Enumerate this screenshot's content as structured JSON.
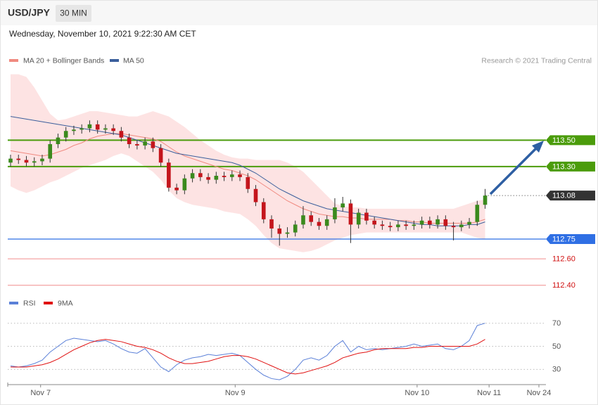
{
  "header": {
    "symbol": "USD/JPY",
    "interval": "30 MIN",
    "date": "Wednesday, November 10, 2021 9:22:30 AM CET"
  },
  "chart_data": [
    {
      "type": "candlestick",
      "source": "Research © 2021 Trading Central",
      "up_color": "#3b8a1d",
      "down_color": "#c4151c",
      "xlim": [
        0,
        66.8
      ],
      "xticks": [
        {
          "value": 3.8,
          "label": "Nov 7"
        },
        {
          "value": 28.4,
          "label": "Nov 9"
        },
        {
          "value": 51.4,
          "label": "Nov 10"
        },
        {
          "value": 60.5,
          "label": "Nov 11"
        },
        {
          "value": 66.8,
          "label": "Nov 24"
        }
      ],
      "ylim": [
        112.35,
        114.03
      ],
      "open": [
        113.33,
        113.36,
        113.35,
        113.33,
        113.34,
        113.36,
        113.47,
        113.52,
        113.57,
        113.58,
        113.59,
        113.62,
        113.58,
        113.59,
        113.57,
        113.52,
        113.47,
        113.46,
        113.49,
        113.44,
        113.33,
        113.14,
        113.12,
        113.21,
        113.25,
        113.22,
        113.2,
        113.23,
        113.22,
        113.24,
        113.22,
        113.13,
        113.03,
        112.9,
        112.83,
        112.79,
        112.8,
        112.86,
        112.93,
        112.88,
        112.85,
        112.9,
        112.99,
        113.02,
        112.86,
        112.95,
        112.89,
        112.86,
        112.85,
        112.84,
        112.86,
        112.85,
        112.86,
        112.89,
        112.86,
        112.9,
        112.85,
        112.84,
        112.86,
        112.88,
        113.01
      ],
      "high": [
        113.39,
        113.39,
        113.38,
        113.37,
        113.39,
        113.5,
        113.55,
        113.6,
        113.61,
        113.62,
        113.65,
        113.65,
        113.62,
        113.62,
        113.6,
        113.55,
        113.5,
        113.52,
        113.52,
        113.47,
        113.36,
        113.17,
        113.24,
        113.28,
        113.28,
        113.25,
        113.26,
        113.26,
        113.27,
        113.27,
        113.25,
        113.16,
        113.06,
        112.93,
        112.86,
        112.84,
        112.89,
        113.0,
        112.96,
        112.91,
        112.93,
        113.06,
        113.07,
        113.05,
        112.98,
        112.98,
        112.92,
        112.89,
        112.88,
        112.89,
        112.89,
        112.89,
        112.92,
        112.92,
        112.93,
        112.93,
        112.88,
        112.89,
        112.91,
        113.04,
        113.13
      ],
      "low": [
        113.3,
        113.32,
        113.3,
        113.3,
        113.31,
        113.33,
        113.44,
        113.49,
        113.54,
        113.55,
        113.56,
        113.55,
        113.55,
        113.54,
        113.49,
        113.44,
        113.43,
        113.43,
        113.41,
        113.3,
        113.11,
        113.09,
        113.09,
        113.18,
        113.19,
        113.17,
        113.17,
        113.19,
        113.19,
        113.19,
        113.1,
        113.0,
        112.87,
        112.76,
        112.7,
        112.76,
        112.77,
        112.83,
        112.85,
        112.82,
        112.82,
        112.87,
        112.96,
        112.72,
        112.83,
        112.86,
        112.83,
        112.82,
        112.81,
        112.81,
        112.82,
        112.82,
        112.83,
        112.83,
        112.83,
        112.82,
        112.74,
        112.81,
        112.83,
        112.85,
        112.98
      ],
      "close": [
        113.36,
        113.35,
        113.33,
        113.34,
        113.36,
        113.47,
        113.52,
        113.57,
        113.58,
        113.59,
        113.62,
        113.58,
        113.59,
        113.57,
        113.52,
        113.47,
        113.46,
        113.49,
        113.44,
        113.33,
        113.14,
        113.12,
        113.21,
        113.25,
        113.22,
        113.2,
        113.23,
        113.22,
        113.24,
        113.22,
        113.13,
        113.03,
        112.9,
        112.83,
        112.79,
        112.8,
        112.86,
        112.93,
        112.88,
        112.85,
        112.9,
        112.99,
        113.02,
        112.86,
        112.95,
        112.89,
        112.86,
        112.85,
        112.84,
        112.86,
        112.85,
        112.86,
        112.89,
        112.86,
        112.9,
        112.85,
        112.84,
        112.86,
        112.88,
        113.01,
        113.08
      ],
      "series": [
        {
          "name": "MA 20 + Bollinger Bands",
          "color": "#f08a80",
          "band_color": "#fde3e3",
          "values": [
            113.42,
            113.41,
            113.4,
            113.39,
            113.38,
            113.39,
            113.41,
            113.43,
            113.46,
            113.48,
            113.51,
            113.53,
            113.54,
            113.55,
            113.55,
            113.54,
            113.53,
            113.52,
            113.51,
            113.49,
            113.45,
            113.41,
            113.38,
            113.36,
            113.34,
            113.32,
            113.3,
            113.28,
            113.27,
            113.25,
            113.23,
            113.2,
            113.16,
            113.12,
            113.08,
            113.04,
            113.01,
            112.98,
            112.96,
            112.94,
            112.93,
            112.92,
            112.92,
            112.91,
            112.91,
            112.9,
            112.9,
            112.9,
            112.9,
            112.89,
            112.89,
            112.88,
            112.88,
            112.87,
            112.87,
            112.87,
            112.87,
            112.87,
            112.87,
            112.88,
            112.9
          ],
          "upper": [
            114.0,
            114.0,
            113.98,
            113.9,
            113.8,
            113.7,
            113.65,
            113.66,
            113.68,
            113.7,
            113.72,
            113.72,
            113.71,
            113.7,
            113.69,
            113.68,
            113.68,
            113.7,
            113.72,
            113.7,
            113.68,
            113.64,
            113.6,
            113.55,
            113.5,
            113.46,
            113.42,
            113.39,
            113.37,
            113.36,
            113.36,
            113.35,
            113.35,
            113.35,
            113.35,
            113.33,
            113.3,
            113.26,
            113.2,
            113.14,
            113.08,
            113.02,
            113.0,
            112.99,
            112.99,
            112.98,
            112.98,
            112.98,
            112.98,
            112.98,
            112.98,
            112.98,
            112.98,
            112.98,
            112.98,
            112.98,
            112.98,
            113.0,
            113.02,
            113.04,
            113.05
          ],
          "lower": [
            113.15,
            113.12,
            113.1,
            113.12,
            113.15,
            113.18,
            113.2,
            113.23,
            113.26,
            113.29,
            113.31,
            113.33,
            113.35,
            113.38,
            113.4,
            113.38,
            113.34,
            113.3,
            113.26,
            113.2,
            113.12,
            113.06,
            113.03,
            113.01,
            113.0,
            112.99,
            112.98,
            112.96,
            112.95,
            112.94,
            112.9,
            112.85,
            112.78,
            112.72,
            112.68,
            112.67,
            112.66,
            112.65,
            112.66,
            112.68,
            112.71,
            112.74,
            112.76,
            112.78,
            112.79,
            112.8,
            112.8,
            112.8,
            112.8,
            112.8,
            112.8,
            112.8,
            112.8,
            112.8,
            112.8,
            112.8,
            112.8,
            112.8,
            112.78,
            112.76,
            112.75
          ]
        },
        {
          "name": "MA 50",
          "color": "#3b5f9c",
          "values": [
            113.68,
            113.67,
            113.66,
            113.65,
            113.64,
            113.63,
            113.62,
            113.61,
            113.6,
            113.59,
            113.58,
            113.57,
            113.56,
            113.55,
            113.54,
            113.52,
            113.5,
            113.48,
            113.46,
            113.44,
            113.42,
            113.4,
            113.39,
            113.38,
            113.37,
            113.36,
            113.35,
            113.34,
            113.33,
            113.31,
            113.28,
            113.25,
            113.21,
            113.17,
            113.13,
            113.1,
            113.07,
            113.04,
            113.02,
            113.0,
            112.98,
            112.97,
            112.96,
            112.95,
            112.94,
            112.93,
            112.92,
            112.91,
            112.9,
            112.89,
            112.88,
            112.87,
            112.86,
            112.86,
            112.85,
            112.85,
            112.85,
            112.85,
            112.86,
            112.86,
            112.88
          ]
        }
      ],
      "levels": [
        {
          "value": 113.5,
          "label": "113.50",
          "color": "#4b9c0b",
          "style": "box"
        },
        {
          "value": 113.3,
          "label": "113.30",
          "color": "#4b9c0b",
          "style": "box"
        },
        {
          "value": 113.08,
          "label": "113.08",
          "color": "#333333",
          "style": "dotted-box"
        },
        {
          "value": 112.75,
          "label": "112.75",
          "color": "#2f6fe4",
          "style": "box"
        },
        {
          "value": 112.6,
          "label": "112.60",
          "color": "#f4a4a4",
          "text_color": "#d01010",
          "style": "text"
        },
        {
          "value": 112.4,
          "label": "112.40",
          "color": "#f4a4a4",
          "text_color": "#d01010",
          "style": "text"
        }
      ]
    },
    {
      "type": "line",
      "xlim": [
        0,
        66.8
      ],
      "ylim": [
        18,
        82
      ],
      "yticks": [
        70,
        50,
        30
      ],
      "grid": true,
      "series": [
        {
          "name": "RSI",
          "color": "#5b80d8",
          "values": [
            33,
            32,
            33,
            35,
            38,
            45,
            50,
            55,
            57,
            56,
            55,
            54,
            55,
            52,
            48,
            45,
            44,
            48,
            40,
            32,
            28,
            34,
            38,
            40,
            41,
            43,
            42,
            43,
            44,
            42,
            36,
            30,
            25,
            22,
            21,
            24,
            30,
            38,
            40,
            38,
            42,
            50,
            55,
            45,
            50,
            47,
            48,
            47,
            48,
            49,
            50,
            52,
            50,
            51,
            52,
            48,
            47,
            50,
            55,
            68,
            70
          ]
        },
        {
          "name": "9MA",
          "color": "#e01010",
          "values": [
            32,
            32,
            32,
            33,
            34,
            36,
            39,
            43,
            47,
            50,
            53,
            55,
            56,
            55,
            54,
            52,
            50,
            49,
            47,
            44,
            40,
            37,
            35,
            35,
            36,
            37,
            39,
            41,
            42,
            42,
            41,
            39,
            36,
            33,
            30,
            27,
            26,
            27,
            29,
            31,
            33,
            36,
            40,
            42,
            44,
            45,
            47,
            48,
            48,
            48,
            48,
            49,
            49,
            50,
            50,
            50,
            50,
            50,
            50,
            52,
            56
          ]
        }
      ]
    }
  ]
}
